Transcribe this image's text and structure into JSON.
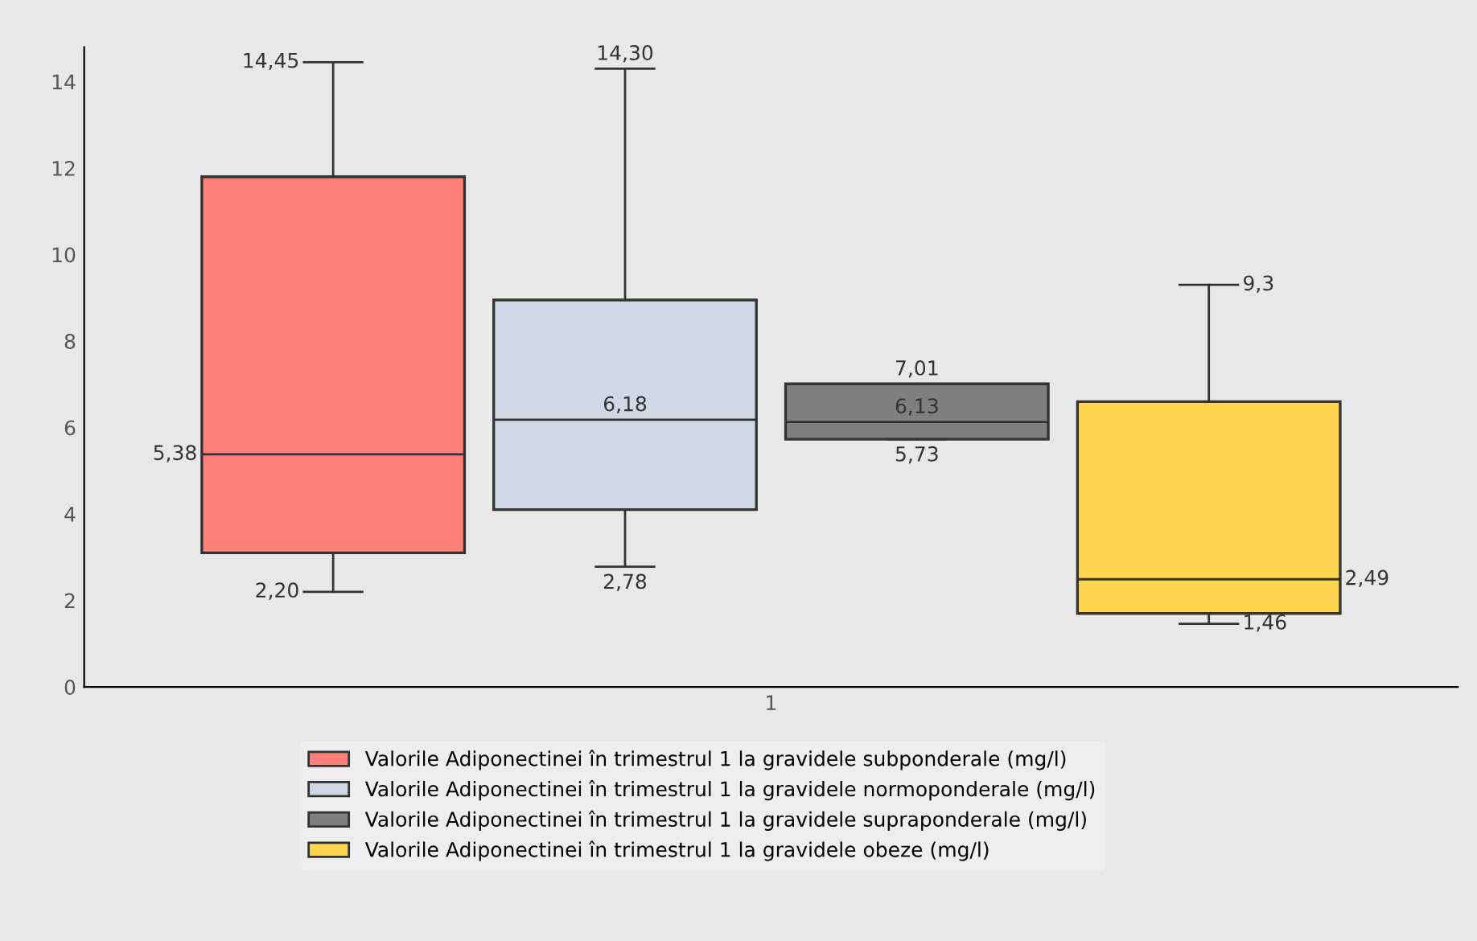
{
  "chart_data": {
    "type": "box",
    "categories": [
      "1"
    ],
    "ylim": [
      0,
      14.8
    ],
    "yticks": [
      0,
      2,
      4,
      6,
      8,
      10,
      12,
      14
    ],
    "grid": false,
    "legend": "bottom",
    "series": [
      {
        "name": "Valorile Adiponectinei în trimestrul 1 la gravidele subponderale (mg/l)",
        "color": "#ff7f7a",
        "boxes": [
          {
            "low": 2.2,
            "q1": 3.1,
            "median": 5.38,
            "q3": 11.8,
            "high": 14.45
          }
        ]
      },
      {
        "name": "Valorile Adiponectinei în trimestrul 1 la gravidele normoponderale (mg/l)",
        "color": "#d0d8e4",
        "boxes": [
          {
            "low": 2.78,
            "q1": 4.1,
            "median": 6.18,
            "q3": 8.95,
            "high": 14.3
          }
        ]
      },
      {
        "name": "Valorile Adiponectinei în trimestrul 1 la gravidele supraponderale (mg/l)",
        "color": "#7f7f7f",
        "boxes": [
          {
            "low": 5.73,
            "q1": 5.73,
            "median": 6.13,
            "q3": 7.01,
            "high": 7.01
          }
        ]
      },
      {
        "name": "Valorile Adiponectinei în trimestrul 1 la gravidele obeze (mg/l)",
        "color": "#ffd54f",
        "boxes": [
          {
            "low": 1.46,
            "q1": 1.7,
            "median": 2.49,
            "q3": 6.6,
            "high": 9.3
          }
        ]
      }
    ],
    "annotations": [
      "14,45",
      "5,38",
      "2,20",
      "14,30",
      "6,18",
      "2,78",
      "7,01",
      "6,13",
      "5,73",
      "9,3",
      "2,49",
      "1,46"
    ]
  }
}
